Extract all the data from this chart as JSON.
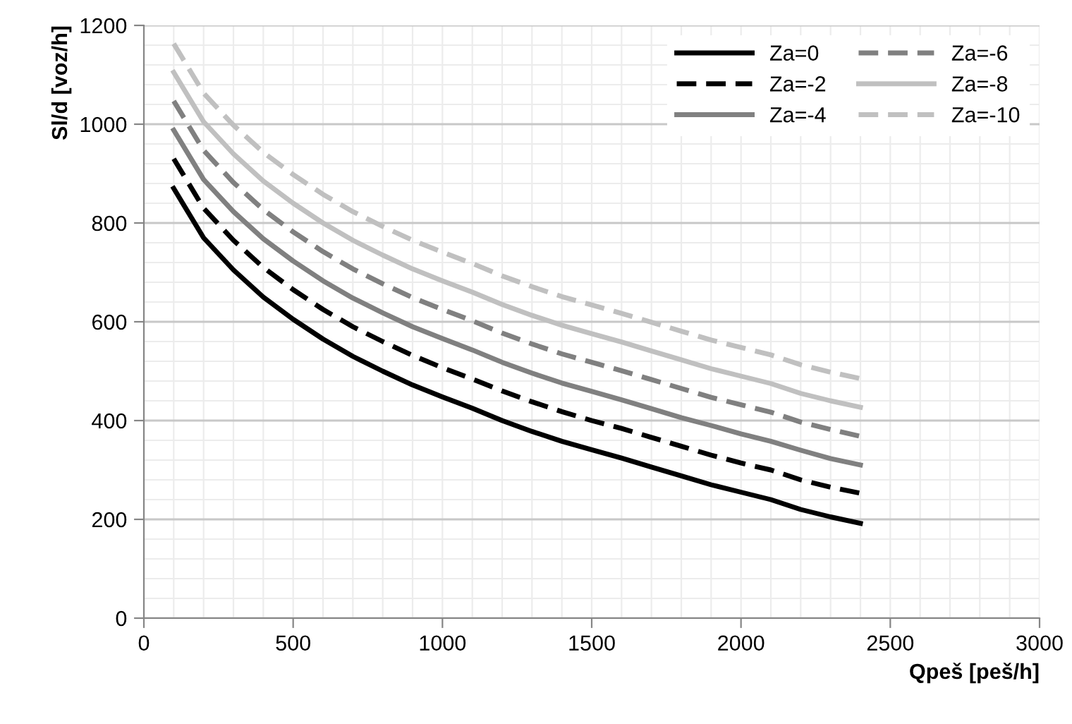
{
  "chart_data": {
    "type": "line",
    "xlabel": "Qpeš [peš/h]",
    "ylabel": "Sl/d [voz/h]",
    "x": [
      100,
      200,
      300,
      400,
      500,
      600,
      700,
      800,
      900,
      1000,
      1100,
      1200,
      1300,
      1400,
      1500,
      1600,
      1700,
      1800,
      1900,
      2000,
      2100,
      2200,
      2300,
      2400
    ],
    "series": [
      {
        "name": "Za=0",
        "color": "#000000",
        "line_style": "solid",
        "values": [
          870,
          770,
          705,
          650,
          605,
          565,
          530,
          500,
          472,
          448,
          425,
          400,
          378,
          358,
          341,
          324,
          306,
          288,
          270,
          255,
          240,
          220,
          205,
          192
        ]
      },
      {
        "name": "Za=-2",
        "color": "#000000",
        "line_style": "dashed",
        "values": [
          930,
          830,
          765,
          710,
          665,
          625,
          590,
          560,
          532,
          507,
          484,
          460,
          438,
          418,
          400,
          384,
          366,
          348,
          330,
          314,
          300,
          280,
          265,
          253
        ]
      },
      {
        "name": "Za=-4",
        "color": "#808080",
        "line_style": "solid",
        "values": [
          988,
          888,
          823,
          768,
          723,
          683,
          648,
          618,
          590,
          566,
          543,
          518,
          496,
          476,
          459,
          442,
          424,
          406,
          390,
          373,
          358,
          340,
          323,
          310
        ]
      },
      {
        "name": "Za=-6",
        "color": "#808080",
        "line_style": "dashed",
        "values": [
          1047,
          947,
          882,
          827,
          782,
          742,
          707,
          677,
          649,
          625,
          602,
          577,
          555,
          535,
          518,
          501,
          483,
          465,
          447,
          432,
          417,
          397,
          382,
          368
        ]
      },
      {
        "name": "Za=-8",
        "color": "#c0c0c0",
        "line_style": "solid",
        "values": [
          1105,
          1005,
          940,
          885,
          840,
          800,
          765,
          735,
          707,
          683,
          660,
          635,
          613,
          593,
          576,
          559,
          541,
          523,
          505,
          490,
          475,
          455,
          440,
          427
        ]
      },
      {
        "name": "Za=-10",
        "color": "#c0c0c0",
        "line_style": "dashed",
        "values": [
          1163,
          1063,
          998,
          943,
          898,
          858,
          823,
          793,
          765,
          741,
          718,
          693,
          671,
          651,
          634,
          617,
          599,
          581,
          563,
          548,
          533,
          513,
          498,
          485
        ]
      }
    ],
    "xlim": [
      0,
      3000
    ],
    "xticks": [
      0,
      500,
      1000,
      1500,
      2000,
      2500,
      3000
    ],
    "ylim": [
      0,
      1200
    ],
    "yticks": [
      0,
      200,
      400,
      600,
      800,
      1000,
      1200
    ],
    "grid": true,
    "legend": "top right",
    "marker": "none"
  }
}
